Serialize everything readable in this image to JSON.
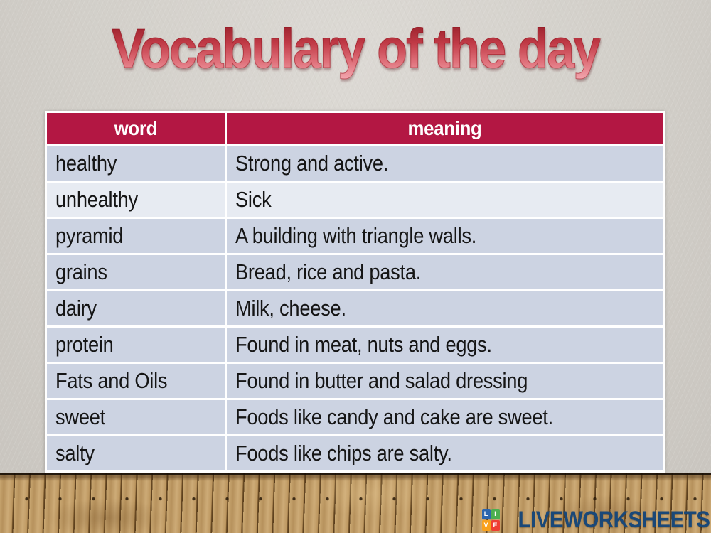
{
  "title": "Vocabulary of the day",
  "table": {
    "headers": [
      "word",
      "meaning"
    ],
    "rows": [
      [
        "healthy",
        "Strong and active."
      ],
      [
        "unhealthy",
        "Sick"
      ],
      [
        "pyramid",
        "A building with triangle walls."
      ],
      [
        "grains",
        "Bread, rice and pasta."
      ],
      [
        "dairy",
        "Milk, cheese."
      ],
      [
        "protein",
        "Found in meat, nuts and eggs."
      ],
      [
        "Fats and Oils",
        "Found in butter and salad dressing"
      ],
      [
        "sweet",
        "Foods like candy and cake are sweet."
      ],
      [
        "salty",
        "Foods like chips are salty."
      ]
    ],
    "highlight_row_index": 1
  },
  "footer": {
    "logo_text": "LIVEWORKSHEETS",
    "logo_squares": [
      {
        "letter": "L",
        "color": "#2c66ae"
      },
      {
        "letter": "I",
        "color": "#4caf50"
      },
      {
        "letter": "V",
        "color": "#f9a11b"
      },
      {
        "letter": "E",
        "color": "#ef3d33"
      }
    ]
  },
  "colors": {
    "header_bg": "#b31743",
    "row_bg": "#ccd3e2",
    "row_alt_bg": "#e7ebf2",
    "wall": "#d2cfc9",
    "title_top": "#941d28",
    "title_bottom": "#f3a8b0",
    "logo_text": "#1a4878"
  }
}
